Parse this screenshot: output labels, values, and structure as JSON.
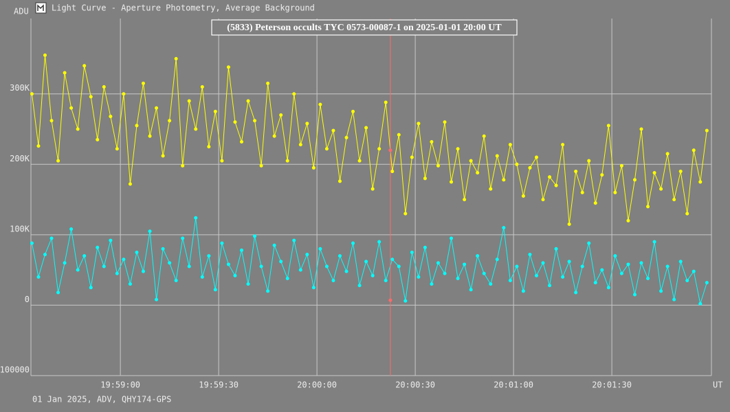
{
  "window_title": "Light Curve - Aperture Photometry, Average Background",
  "footer": "01 Jan 2025, ADV, QHY174-GPS",
  "chart_data": {
    "type": "line",
    "title": "(5833) Peterson occults TYC 0573-00087-1 on 2025-01-01  20:00 UT",
    "y_label": "ADU",
    "x_label": "UT",
    "xlim": [
      32.7,
      240.4
    ],
    "ylim": [
      -100000,
      407000
    ],
    "xticks": [
      {
        "value": 60,
        "label": "19:59:00"
      },
      {
        "value": 90,
        "label": "19:59:30"
      },
      {
        "value": 120,
        "label": "20:00:00"
      },
      {
        "value": 150,
        "label": "20:00:30"
      },
      {
        "value": 180,
        "label": "20:01:00"
      },
      {
        "value": 210,
        "label": "20:01:30"
      }
    ],
    "yticks": [
      {
        "value": -100000,
        "label": "-100000"
      },
      0,
      {
        "value": 100000,
        "label": "100K"
      },
      {
        "value": 200000,
        "label": "200K"
      },
      {
        "value": 300000,
        "label": "300K"
      }
    ],
    "grid": true,
    "cursor": {
      "x": 142.4,
      "values": [
        220000,
        7000
      ],
      "color": "#ff6a6a"
    },
    "x": [
      33,
      35,
      37,
      39,
      41,
      43,
      45,
      47,
      49,
      51,
      53,
      55,
      57,
      59,
      61,
      63,
      65,
      67,
      69,
      71,
      73,
      75,
      77,
      79,
      81,
      83,
      85,
      87,
      89,
      91,
      93,
      95,
      97,
      99,
      101,
      103,
      105,
      107,
      109,
      111,
      113,
      115,
      117,
      119,
      121,
      123,
      125,
      127,
      129,
      131,
      133,
      135,
      137,
      139,
      141,
      143,
      145,
      147,
      149,
      151,
      153,
      155,
      157,
      159,
      161,
      163,
      165,
      167,
      169,
      171,
      173,
      175,
      177,
      179,
      181,
      183,
      185,
      187,
      189,
      191,
      193,
      195,
      197,
      199,
      201,
      203,
      205,
      207,
      209,
      211,
      213,
      215,
      217,
      219,
      221,
      223,
      225,
      227,
      229,
      231,
      233,
      235,
      237,
      239
    ],
    "series": [
      {
        "color": "#ffff00",
        "values": [
          300000,
          226000,
          355000,
          262000,
          205000,
          330000,
          280000,
          250000,
          340000,
          296000,
          235000,
          310000,
          268000,
          222000,
          300000,
          172000,
          255000,
          315000,
          240000,
          280000,
          212000,
          262000,
          350000,
          198000,
          290000,
          250000,
          310000,
          225000,
          275000,
          205000,
          338000,
          260000,
          232000,
          290000,
          262000,
          198000,
          315000,
          240000,
          270000,
          205000,
          300000,
          228000,
          258000,
          195000,
          285000,
          222000,
          248000,
          176000,
          238000,
          275000,
          205000,
          252000,
          165000,
          222000,
          288000,
          190000,
          242000,
          130000,
          210000,
          258000,
          180000,
          232000,
          198000,
          260000,
          175000,
          222000,
          150000,
          205000,
          188000,
          240000,
          165000,
          212000,
          178000,
          228000,
          200000,
          155000,
          195000,
          210000,
          150000,
          182000,
          170000,
          228000,
          115000,
          190000,
          160000,
          205000,
          145000,
          185000,
          255000,
          160000,
          198000,
          120000,
          178000,
          250000,
          140000,
          188000,
          165000,
          215000,
          150000,
          190000,
          130000,
          220000,
          175000,
          248000
        ]
      },
      {
        "color": "#00ffff",
        "values": [
          88000,
          40000,
          72000,
          95000,
          18000,
          60000,
          108000,
          50000,
          70000,
          25000,
          82000,
          55000,
          92000,
          45000,
          65000,
          30000,
          75000,
          48000,
          105000,
          8000,
          80000,
          60000,
          35000,
          95000,
          55000,
          124000,
          40000,
          70000,
          22000,
          88000,
          58000,
          42000,
          78000,
          30000,
          98000,
          55000,
          20000,
          85000,
          62000,
          38000,
          92000,
          50000,
          72000,
          25000,
          80000,
          55000,
          35000,
          70000,
          48000,
          88000,
          28000,
          62000,
          42000,
          90000,
          35000,
          65000,
          55000,
          6000,
          75000,
          40000,
          82000,
          30000,
          60000,
          45000,
          95000,
          38000,
          58000,
          22000,
          70000,
          45000,
          30000,
          65000,
          110000,
          35000,
          55000,
          20000,
          72000,
          42000,
          60000,
          28000,
          80000,
          40000,
          62000,
          18000,
          55000,
          88000,
          32000,
          50000,
          25000,
          70000,
          45000,
          58000,
          15000,
          60000,
          38000,
          90000,
          20000,
          55000,
          8000,
          62000,
          35000,
          48000,
          2000,
          32000
        ]
      }
    ]
  }
}
